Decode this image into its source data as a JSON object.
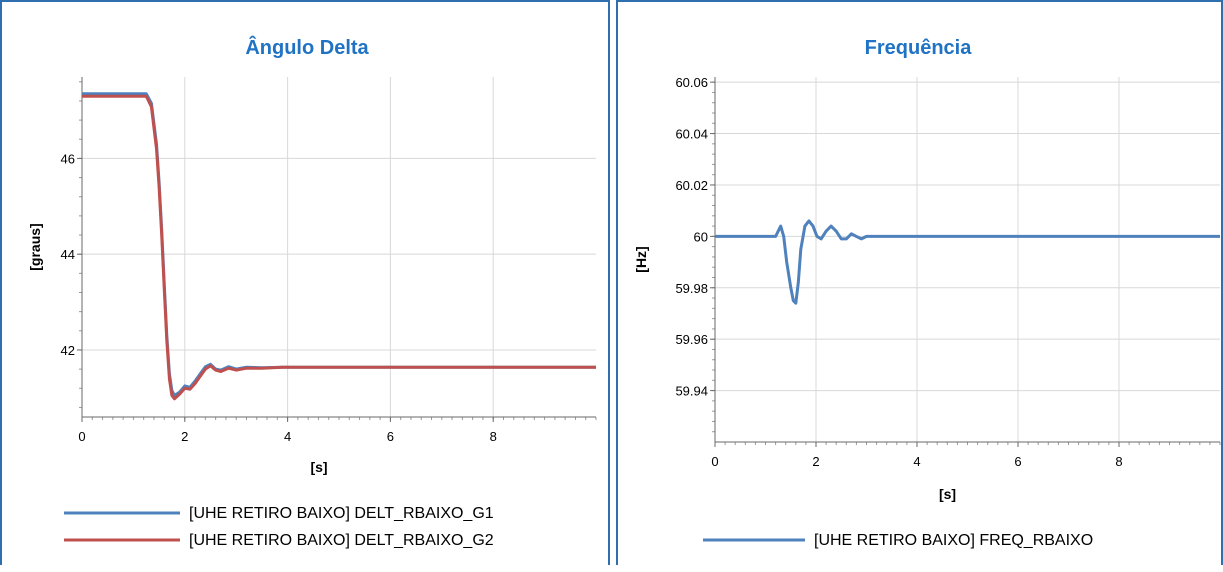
{
  "colors": {
    "blue": "#4f81bd",
    "red": "#c0504d",
    "title": "#1f72c4"
  },
  "chart_data": [
    {
      "type": "line",
      "title": "Ângulo Delta",
      "xlabel": "[s]",
      "ylabel": "[graus]",
      "xlim": [
        0,
        10
      ],
      "ylim": [
        40.6,
        47.7
      ],
      "xticks": [
        0,
        2,
        4,
        6,
        8
      ],
      "yticks": [
        42,
        44,
        46
      ],
      "xticklabels": [
        "0",
        "2",
        "4",
        "6",
        "8"
      ],
      "yticklabels": [
        "42",
        "44",
        "46"
      ],
      "grid": true,
      "legend_position": "bottom",
      "series": [
        {
          "name": "[UHE RETIRO BAIXO] DELT_RBAIXO_G1",
          "color": "#4f81bd",
          "x": [
            0,
            1.25,
            1.35,
            1.45,
            1.5,
            1.55,
            1.6,
            1.65,
            1.7,
            1.75,
            1.8,
            1.9,
            2.0,
            2.1,
            2.2,
            2.3,
            2.4,
            2.5,
            2.6,
            2.7,
            2.85,
            3.0,
            3.2,
            3.5,
            3.9,
            10
          ],
          "y": [
            47.35,
            47.35,
            47.15,
            46.3,
            45.5,
            44.5,
            43.4,
            42.3,
            41.5,
            41.15,
            41.05,
            41.12,
            41.25,
            41.22,
            41.35,
            41.5,
            41.65,
            41.7,
            41.6,
            41.58,
            41.65,
            41.6,
            41.64,
            41.63,
            41.64,
            41.64
          ]
        },
        {
          "name": "[UHE RETIRO BAIXO] DELT_RBAIXO_G2",
          "color": "#c0504d",
          "x": [
            0,
            1.25,
            1.35,
            1.45,
            1.5,
            1.55,
            1.6,
            1.65,
            1.7,
            1.75,
            1.8,
            1.9,
            2.0,
            2.1,
            2.2,
            2.3,
            2.4,
            2.5,
            2.6,
            2.7,
            2.85,
            3.0,
            3.2,
            3.5,
            3.9,
            10
          ],
          "y": [
            47.3,
            47.3,
            47.08,
            46.2,
            45.4,
            44.4,
            43.3,
            42.2,
            41.4,
            41.05,
            40.98,
            41.08,
            41.2,
            41.18,
            41.3,
            41.45,
            41.6,
            41.67,
            41.58,
            41.55,
            41.62,
            41.58,
            41.62,
            41.62,
            41.64,
            41.64
          ]
        }
      ]
    },
    {
      "type": "line",
      "title": "Frequência",
      "xlabel": "[s]",
      "ylabel": "[Hz]",
      "xlim": [
        0,
        10
      ],
      "ylim": [
        59.92,
        60.062
      ],
      "xticks": [
        0,
        2,
        4,
        6,
        8
      ],
      "yticks": [
        59.94,
        59.96,
        59.98,
        60,
        60.02,
        60.04,
        60.06
      ],
      "xticklabels": [
        "0",
        "2",
        "4",
        "6",
        "8"
      ],
      "yticklabels": [
        "59.94",
        "59.96",
        "59.98",
        "60",
        "60.02",
        "60.04",
        "60.06"
      ],
      "grid": true,
      "legend_position": "bottom",
      "series": [
        {
          "name": "[UHE RETIRO BAIXO] FREQ_RBAIXO",
          "color": "#4f81bd",
          "x": [
            0,
            1.2,
            1.3,
            1.36,
            1.42,
            1.5,
            1.55,
            1.6,
            1.65,
            1.7,
            1.78,
            1.86,
            1.94,
            2.02,
            2.1,
            2.2,
            2.3,
            2.4,
            2.5,
            2.6,
            2.7,
            2.8,
            2.9,
            3.0,
            3.1,
            10
          ],
          "y": [
            60,
            60,
            60.004,
            60.0,
            59.99,
            59.98,
            59.975,
            59.974,
            59.982,
            59.995,
            60.004,
            60.006,
            60.004,
            60.0,
            59.999,
            60.002,
            60.004,
            60.002,
            59.999,
            59.999,
            60.001,
            60.0,
            59.999,
            60.0,
            60.0,
            60
          ]
        }
      ]
    }
  ]
}
